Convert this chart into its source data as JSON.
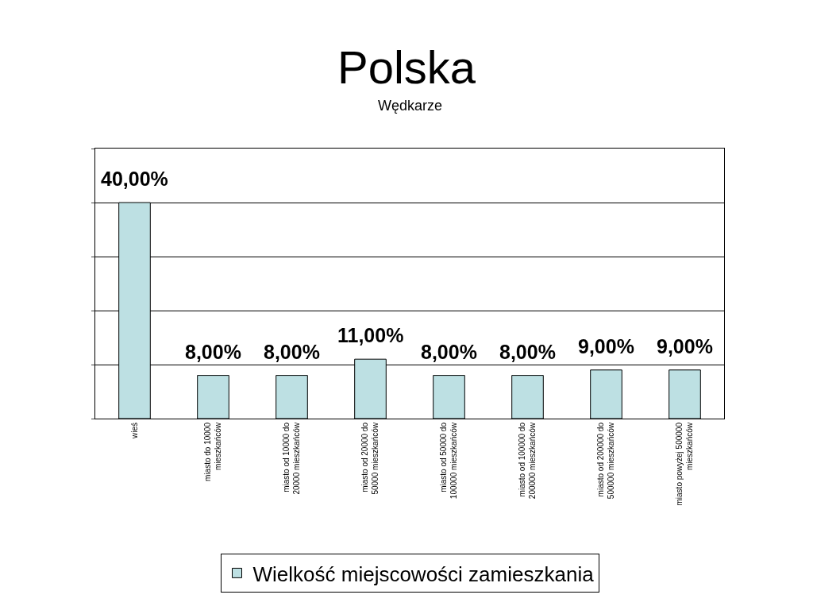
{
  "chart_data": {
    "type": "bar",
    "title": "Polska",
    "subtitle": "Wędkarze",
    "categories": [
      "wieś",
      "miasto do 10000 mieszkańców",
      "miasto od 10000 do 20000 mieszkańców",
      "miasto od 20000 do 50000 mieszkańców",
      "miasto od 50000 do 100000 mieszkańców",
      "miasto od 100000 do 200000 mieszkańców",
      "miasto od 200000 do 500000 mieszkańców",
      "miasto powyżej 500000 mieszkańców"
    ],
    "series": [
      {
        "name": "Wielkość miejscowości zamieszkania",
        "color": "#bde0e3",
        "values": [
          40,
          8,
          8,
          11,
          8,
          8,
          9,
          9
        ],
        "value_labels": [
          "40,00%",
          "8,00%",
          "8,00%",
          "11,00%",
          "8,00%",
          "8,00%",
          "9,00%",
          "9,00%"
        ]
      }
    ],
    "ylim": [
      0,
      50
    ],
    "yticks": [
      {
        "value": 0,
        "label": null
      },
      {
        "value": 10,
        "label": null
      },
      {
        "value": 20,
        "label": null
      },
      {
        "value": 30,
        "label": null
      },
      {
        "value": 40,
        "label": null
      },
      {
        "value": 50,
        "label": null
      }
    ],
    "tick_labels": "x",
    "grid": "y",
    "legend": "bottom"
  }
}
